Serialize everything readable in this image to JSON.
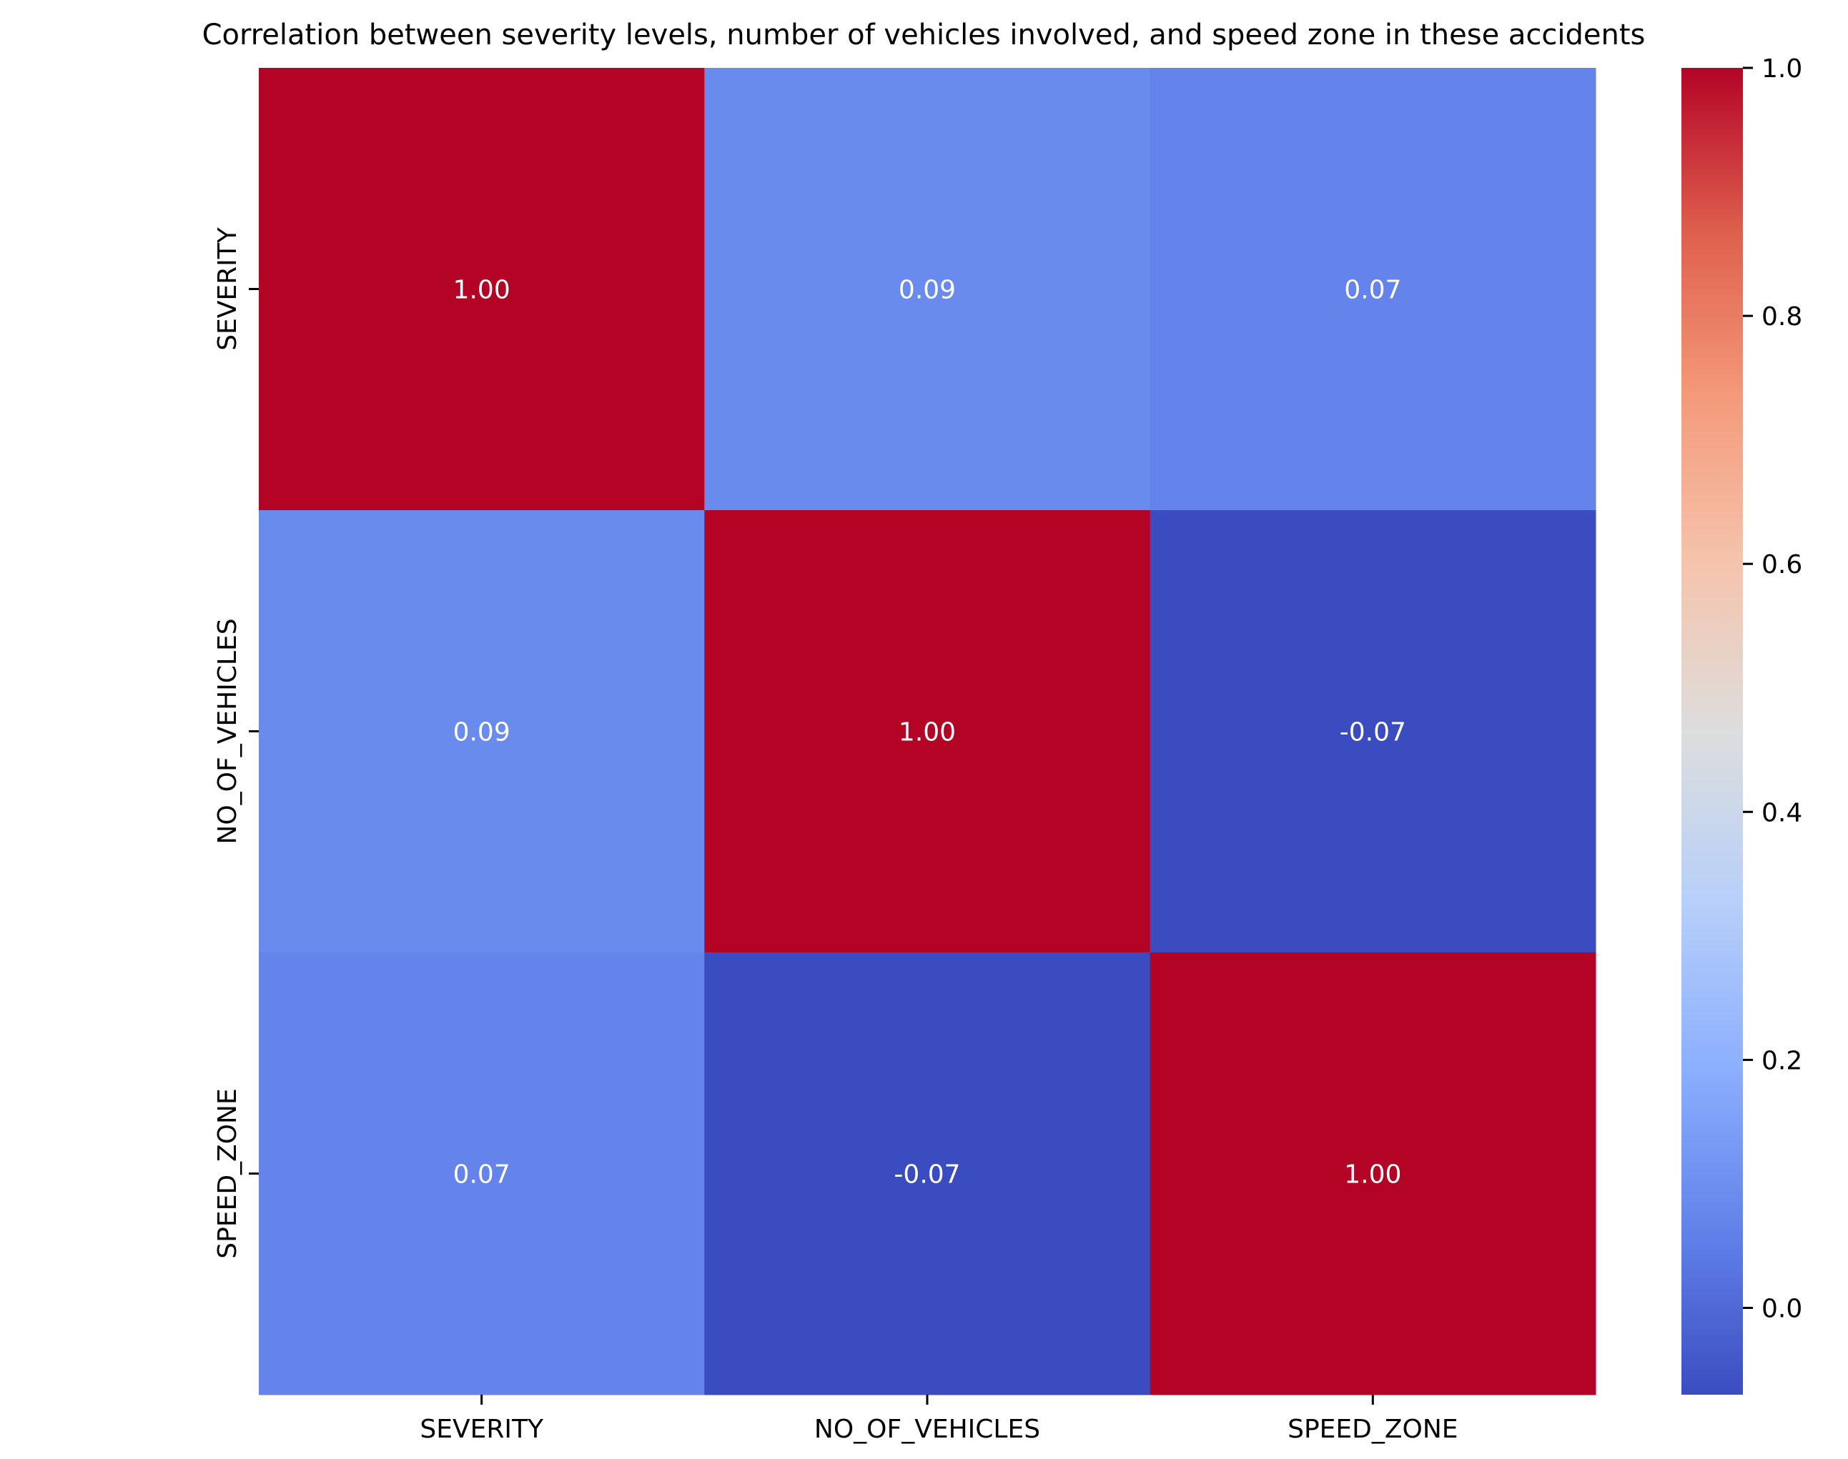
{
  "chart_data": {
    "type": "heatmap",
    "title": "Correlation between severity levels, number of vehicles involved, and speed zone in these accidents",
    "x_categories": [
      "SEVERITY",
      "NO_OF_VEHICLES",
      "SPEED_ZONE"
    ],
    "y_categories": [
      "SEVERITY",
      "NO_OF_VEHICLES",
      "SPEED_ZONE"
    ],
    "values": [
      [
        1.0,
        0.09,
        0.07
      ],
      [
        0.09,
        1.0,
        -0.07
      ],
      [
        0.07,
        -0.07,
        1.0
      ]
    ],
    "value_format": "0.00",
    "colormap": "coolwarm",
    "colorbar": {
      "range": [
        -0.07,
        1.0
      ],
      "ticks": [
        0.0,
        0.2,
        0.4,
        0.6,
        0.8,
        1.0
      ],
      "tick_labels": [
        "0.0",
        "0.2",
        "0.4",
        "0.6",
        "0.8",
        "1.0"
      ]
    },
    "xlabel": "",
    "ylabel": ""
  }
}
